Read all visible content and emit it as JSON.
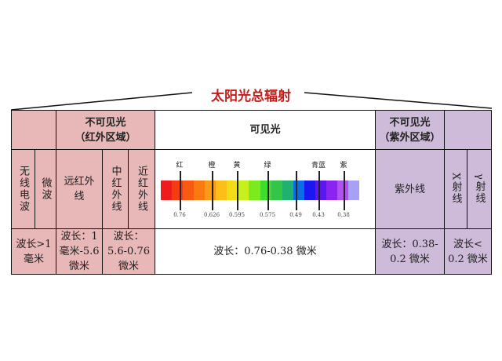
{
  "title": "太阳光总辐射",
  "header": {
    "ir_region": "不可见光\n（红外区域）",
    "visible": "可见光",
    "uv_region": "不可见光\n（紫外区域）"
  },
  "bands": {
    "radio": "无线电波",
    "microwave": "微波",
    "far_ir": "远红外\n线",
    "mid_ir": "中红外线",
    "near_ir": "近红外线",
    "uv": "紫外线",
    "xray": "X射线",
    "gamma": "γ射线"
  },
  "wavelengths": {
    "radio": "波长>1\n毫米",
    "far_ir": "波长：1\n毫米-5.6\n微米",
    "ir_mid_near": "波长：\n5.6-0.76\n微米",
    "visible": "波长：0.76-0.38 微米",
    "uv": "波长：0.38-\n0.2 微米",
    "xray_gamma": "波长<\n0.2 微米"
  },
  "spectrum": {
    "colors": [
      "#ee1c1c",
      "#f53b10",
      "#f85a12",
      "#fa7a12",
      "#fb9a14",
      "#fbbf18",
      "#f2dc1a",
      "#c8ef1e",
      "#7dea1e",
      "#3fdc2e",
      "#35c44a",
      "#20b070",
      "#0a6ee8",
      "#1a18f0",
      "#5a18f0",
      "#8a24f0",
      "#b050f0",
      "#a8a0f4"
    ],
    "markers": [
      {
        "color": "红",
        "wavelength": "0.76"
      },
      {
        "color": "橙",
        "wavelength": "0.626"
      },
      {
        "color": "黄",
        "wavelength": "0.595"
      },
      {
        "color": "绿",
        "wavelength": "0.575"
      },
      {
        "color": "",
        "wavelength": "0.49"
      },
      {
        "color": "青蓝",
        "wavelength": "0.43"
      },
      {
        "color": "紫",
        "wavelength": "0.38"
      }
    ]
  }
}
